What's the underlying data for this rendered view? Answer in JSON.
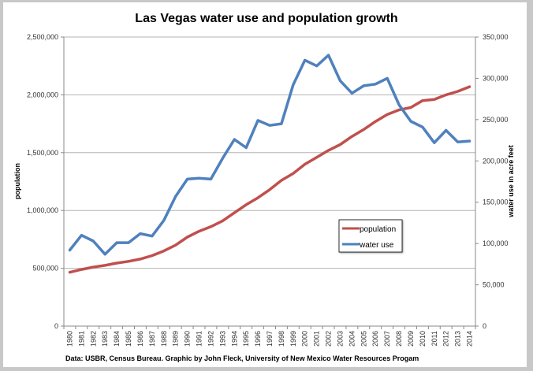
{
  "chart_data": {
    "type": "line",
    "title": "Las Vegas water use and population growth",
    "xlabel": "",
    "ylabel": "population",
    "ylabel_right": "water use in acre feet",
    "footnote": "Data: USBR, Census Bureau. Graphic by John Fleck, University of New Mexico Water Resources Progam",
    "categories": [
      "1980",
      "1981",
      "1982",
      "1983",
      "1984",
      "1985",
      "1986",
      "1987",
      "1988",
      "1989",
      "1990",
      "1991",
      "1992",
      "1993",
      "1994",
      "1995",
      "1996",
      "1997",
      "1998",
      "1999",
      "2000",
      "2001",
      "2002",
      "2003",
      "2004",
      "2005",
      "2006",
      "2007",
      "2008",
      "2009",
      "2010",
      "2011",
      "2012",
      "2013",
      "2014"
    ],
    "ylim": [
      0,
      2500000
    ],
    "ylim_right": [
      0,
      350000
    ],
    "yticks": [
      "0",
      "500,000",
      "1,000,000",
      "1,500,000",
      "2,000,000",
      "2,500,000"
    ],
    "yticks_right": [
      "0",
      "50,000",
      "100,000",
      "150,000",
      "200,000",
      "250,000",
      "300,000",
      "350,000"
    ],
    "grid": true,
    "legend_placement": "center-right",
    "series": [
      {
        "name": "population",
        "axis": "left",
        "color": "#c0504d",
        "values": [
          465000,
          490000,
          510000,
          525000,
          545000,
          560000,
          580000,
          610000,
          650000,
          700000,
          770000,
          820000,
          860000,
          910000,
          980000,
          1050000,
          1110000,
          1180000,
          1260000,
          1320000,
          1400000,
          1460000,
          1520000,
          1570000,
          1640000,
          1700000,
          1770000,
          1830000,
          1870000,
          1890000,
          1950000,
          1960000,
          2000000,
          2030000,
          2070000
        ]
      },
      {
        "name": "water use",
        "axis": "right",
        "color": "#4f81bd",
        "values": [
          92000,
          110000,
          103000,
          87000,
          101000,
          101000,
          112000,
          109000,
          128000,
          157000,
          178000,
          179000,
          178000,
          203000,
          226000,
          216000,
          249000,
          243000,
          245000,
          292000,
          322000,
          315000,
          328000,
          297000,
          282000,
          291000,
          293000,
          300000,
          268000,
          248000,
          241000,
          222000,
          237000,
          223000,
          224000
        ]
      }
    ]
  }
}
